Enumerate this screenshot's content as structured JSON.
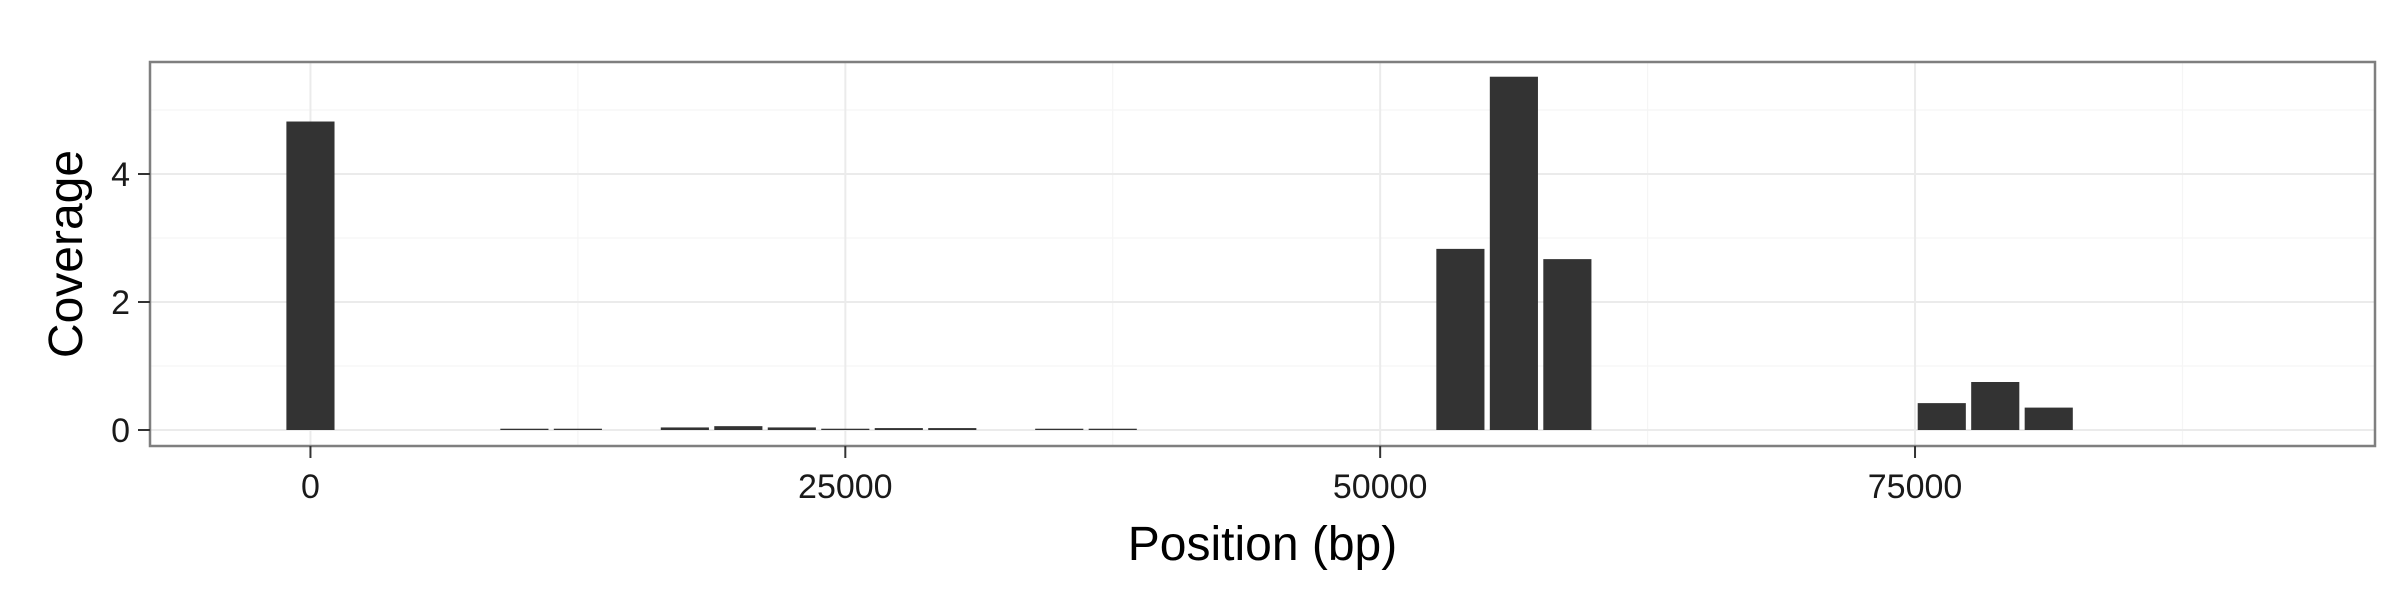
{
  "chart_data": {
    "type": "bar",
    "xlabel": "Position (bp)",
    "ylabel": "Coverage",
    "xlim": [
      -7500,
      96500
    ],
    "ylim": [
      -0.25,
      5.75
    ],
    "x_ticks": [
      0,
      25000,
      50000,
      75000
    ],
    "y_ticks": [
      0,
      2,
      4
    ],
    "bin_width": 2500,
    "grid": true,
    "colors": {
      "bar": "#333333",
      "panel_border": "#7f7f7f",
      "grid_major": "#ebebeb",
      "grid_minor": "#f5f5f5"
    },
    "x": [
      0,
      10000,
      12500,
      17500,
      20000,
      22500,
      25000,
      27500,
      30000,
      35000,
      37500,
      53750,
      56250,
      58750,
      76250,
      78750,
      81250
    ],
    "values": [
      4.82,
      0.02,
      0.02,
      0.04,
      0.06,
      0.04,
      0.02,
      0.03,
      0.03,
      0.02,
      0.02,
      2.83,
      5.52,
      2.67,
      0.42,
      0.75,
      0.35
    ]
  }
}
